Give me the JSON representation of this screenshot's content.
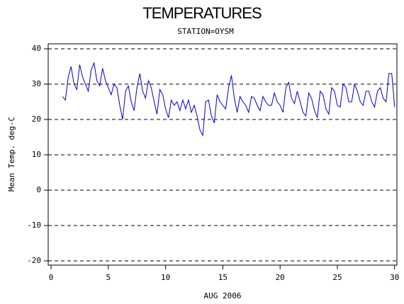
{
  "chart_data": {
    "type": "line",
    "title": "TEMPERATURES",
    "subtitle": "STATION=OYSM",
    "x_label": "AUG 2006",
    "y_label": "Mean Temp. deg-C",
    "x": [
      1,
      1.25,
      1.5,
      1.75,
      2,
      2.25,
      2.5,
      2.75,
      3,
      3.25,
      3.5,
      3.75,
      4,
      4.25,
      4.5,
      4.75,
      5,
      5.25,
      5.5,
      5.75,
      6,
      6.25,
      6.5,
      6.75,
      7,
      7.25,
      7.5,
      7.75,
      8,
      8.25,
      8.5,
      8.75,
      9,
      9.25,
      9.5,
      9.75,
      10,
      10.25,
      10.5,
      10.75,
      11,
      11.25,
      11.5,
      11.75,
      12,
      12.25,
      12.5,
      12.75,
      13,
      13.25,
      13.5,
      13.75,
      14,
      14.25,
      14.5,
      14.75,
      15,
      15.25,
      15.5,
      15.75,
      16,
      16.25,
      16.5,
      16.75,
      17,
      17.25,
      17.5,
      17.75,
      18,
      18.25,
      18.5,
      18.75,
      19,
      19.25,
      19.5,
      19.75,
      20,
      20.25,
      20.5,
      20.75,
      21,
      21.25,
      21.5,
      21.75,
      22,
      22.25,
      22.5,
      22.75,
      23,
      23.25,
      23.5,
      23.75,
      24,
      24.25,
      24.5,
      24.75,
      25,
      25.25,
      25.5,
      25.75,
      26,
      26.25,
      26.5,
      26.75,
      27,
      27.25,
      27.5,
      27.75,
      28,
      28.25,
      28.5,
      28.75,
      29,
      29.25,
      29.5,
      29.75,
      30
    ],
    "series": [
      {
        "name": "Mean Temp",
        "color": "#0000cc",
        "values": [
          26.5,
          25.5,
          32,
          35,
          30,
          28.5,
          35.5,
          32,
          30,
          28,
          34,
          36,
          31,
          29.5,
          34.5,
          31,
          29,
          27,
          30,
          29,
          24,
          20,
          28,
          29.5,
          25,
          22.5,
          29,
          33,
          28,
          26,
          31,
          29,
          25,
          21.5,
          28.5,
          27,
          23,
          20.5,
          25.5,
          24,
          25,
          22.5,
          25.5,
          23,
          25.5,
          22,
          24,
          21,
          17,
          15.5,
          25,
          25.5,
          21,
          19,
          27,
          25,
          24,
          23,
          29,
          32.5,
          26,
          22,
          26.5,
          25,
          24,
          22,
          26.5,
          26,
          24,
          22.5,
          26.5,
          25,
          24,
          24,
          27.5,
          25,
          24,
          22,
          29,
          30.5,
          26,
          24.5,
          28,
          25,
          22,
          21,
          27.5,
          26,
          22.5,
          20.5,
          28,
          27,
          23,
          21.5,
          29,
          28,
          24,
          23.5,
          30,
          29,
          25,
          25,
          30,
          28,
          25,
          24,
          28,
          28,
          25,
          23.5,
          28,
          29,
          26,
          25,
          33,
          33,
          23.5
        ]
      }
    ],
    "xlim": [
      -0.25,
      30.2
    ],
    "ylim": [
      -21.2,
      41.4
    ],
    "xticks": [
      0,
      5,
      10,
      15,
      20,
      25,
      30
    ],
    "yticks": [
      -20,
      -10,
      0,
      10,
      20,
      30,
      40
    ],
    "grid": true
  }
}
